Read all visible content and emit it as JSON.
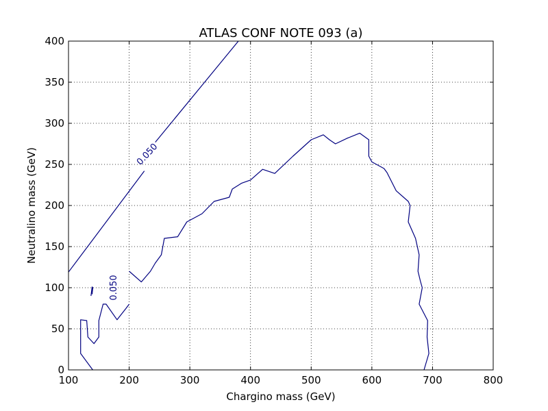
{
  "chart_data": {
    "type": "line",
    "title": "ATLAS CONF NOTE 093 (a)",
    "xlabel": "Chargino mass (GeV)",
    "ylabel": "Neutralino mass (GeV)",
    "xlim": [
      100,
      800
    ],
    "ylim": [
      0,
      400
    ],
    "xticks": [
      100,
      200,
      300,
      400,
      500,
      600,
      700,
      800
    ],
    "yticks": [
      0,
      50,
      100,
      150,
      200,
      250,
      300,
      350,
      400
    ],
    "grid": true,
    "line_color": "#000080",
    "series": [
      {
        "points": [
          [
            100,
            119
          ],
          [
            225,
            242
          ],
          [
            243,
            277
          ],
          [
            380,
            400
          ]
        ],
        "gap_after_index": 1
      },
      {
        "points": [
          [
            137,
            90
          ],
          [
            139,
            101
          ],
          [
            140,
            100
          ],
          [
            139,
            92
          ]
        ]
      },
      {
        "points": [
          [
            200,
            80
          ],
          [
            195,
            75
          ],
          [
            180,
            61
          ],
          [
            162,
            80
          ],
          [
            157,
            80
          ],
          [
            150,
            60
          ],
          [
            150,
            40
          ],
          [
            142,
            32
          ],
          [
            132,
            40
          ],
          [
            130,
            60
          ],
          [
            120,
            61
          ],
          [
            120,
            20
          ],
          [
            140,
            0
          ]
        ]
      },
      {
        "points": [
          [
            200,
            120
          ],
          [
            220,
            107
          ],
          [
            235,
            120
          ],
          [
            243,
            130
          ],
          [
            253,
            140
          ],
          [
            258,
            160
          ],
          [
            280,
            162
          ],
          [
            295,
            180
          ],
          [
            320,
            190
          ],
          [
            340,
            205
          ],
          [
            365,
            210
          ],
          [
            370,
            220
          ],
          [
            385,
            227
          ],
          [
            400,
            231
          ],
          [
            420,
            244
          ],
          [
            440,
            239
          ],
          [
            470,
            260
          ],
          [
            500,
            280
          ],
          [
            520,
            286
          ],
          [
            530,
            280
          ],
          [
            540,
            275
          ],
          [
            560,
            282
          ],
          [
            580,
            288
          ],
          [
            595,
            280
          ],
          [
            595,
            260
          ],
          [
            600,
            253
          ],
          [
            620,
            245
          ],
          [
            625,
            240
          ],
          [
            640,
            218
          ],
          [
            660,
            205
          ],
          [
            663,
            200
          ],
          [
            660,
            180
          ],
          [
            672,
            160
          ],
          [
            678,
            140
          ],
          [
            676,
            120
          ],
          [
            680,
            108
          ],
          [
            683,
            100
          ],
          [
            678,
            80
          ],
          [
            692,
            60
          ],
          [
            691,
            40
          ],
          [
            694,
            20
          ],
          [
            686,
            0
          ]
        ]
      }
    ],
    "annotations": [
      {
        "text": "0.050",
        "x": 230,
        "y": 262,
        "rotation": -47
      },
      {
        "text": "0.050",
        "x": 175,
        "y": 100,
        "rotation": -90
      }
    ]
  }
}
